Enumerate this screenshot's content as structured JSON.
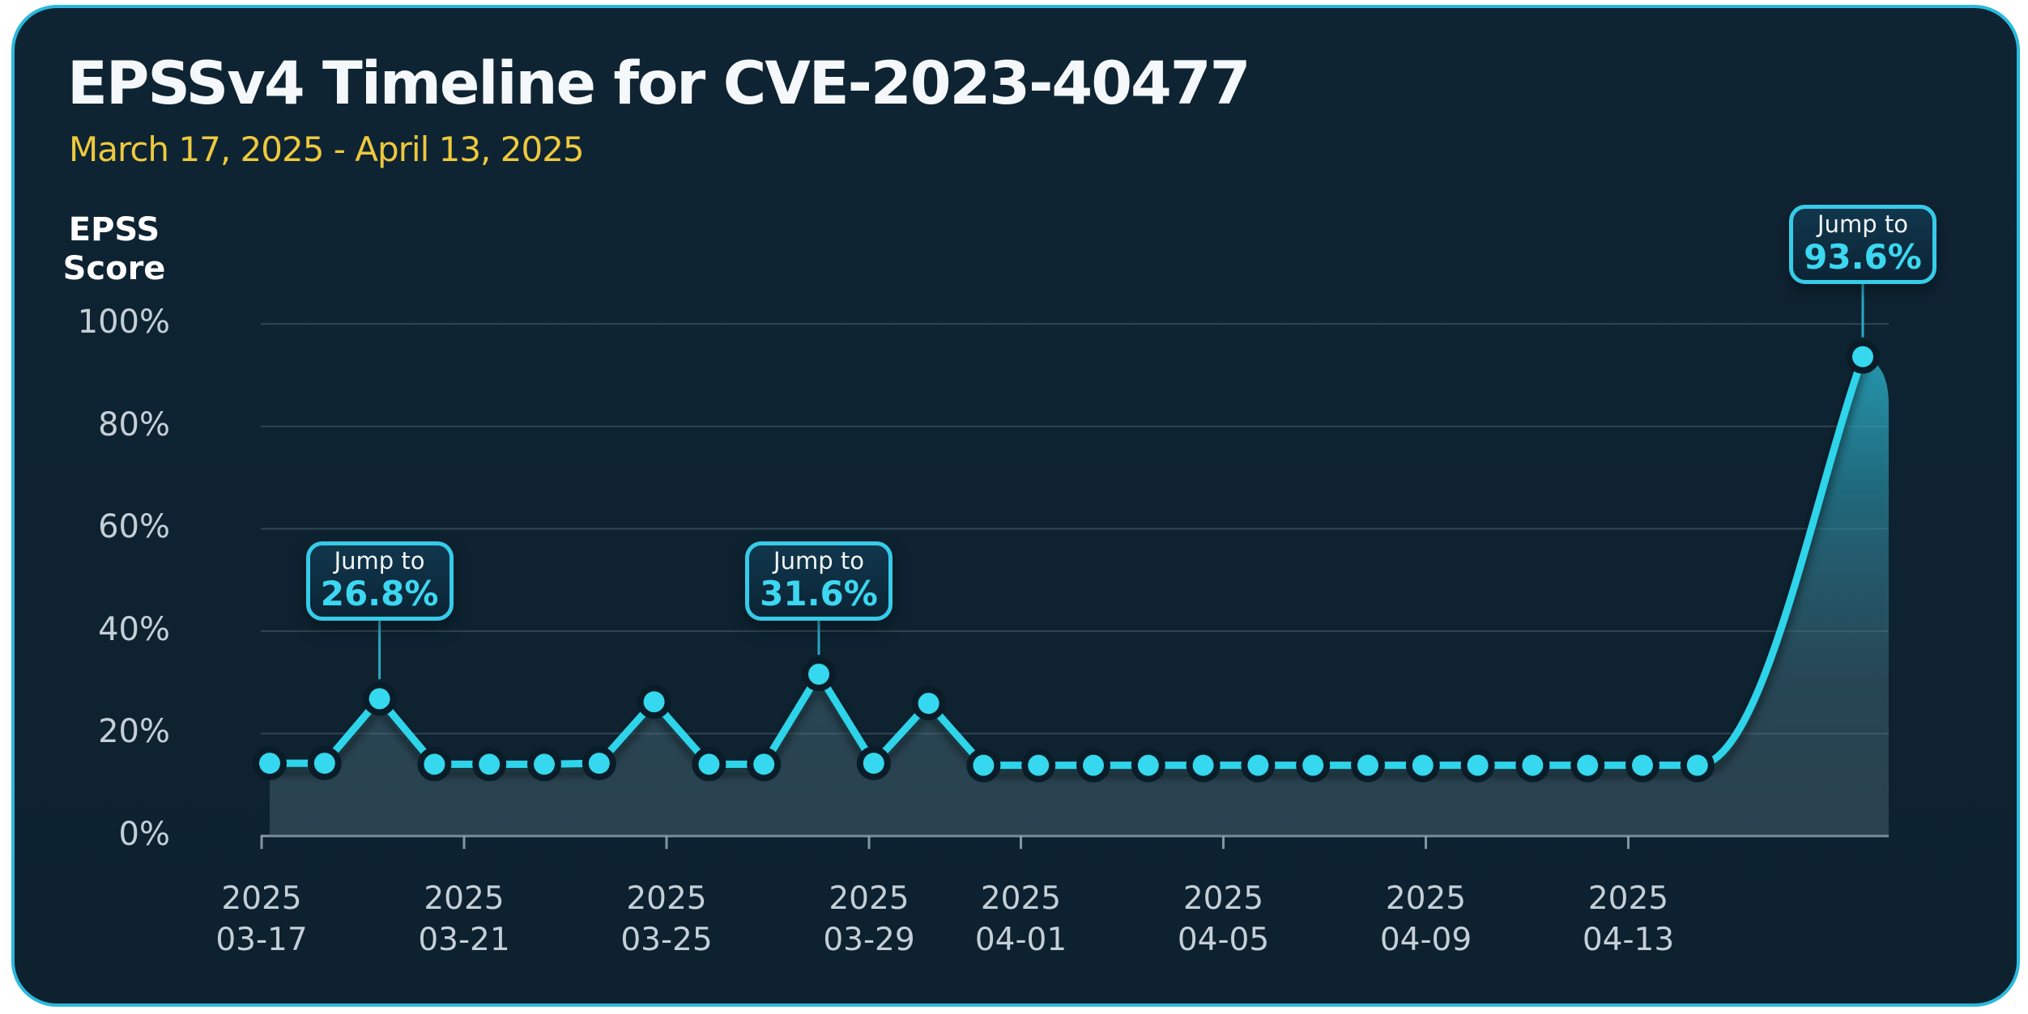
{
  "header": {
    "title": "EPSSv4 Timeline for CVE-2023-40477",
    "subtitle": "March 17, 2025 - April 13, 2025"
  },
  "y_axis": {
    "title_line1": "EPSS",
    "title_line2": "Score",
    "tick_labels": [
      "100%",
      "80%",
      "60%",
      "40%",
      "20%",
      "0%"
    ],
    "tick_values": [
      100,
      80,
      60,
      40,
      20,
      0
    ]
  },
  "x_axis": {
    "ticks": [
      {
        "year": "2025",
        "date": "03-17",
        "day": 0
      },
      {
        "year": "2025",
        "date": "03-21",
        "day": 4
      },
      {
        "year": "2025",
        "date": "03-25",
        "day": 8
      },
      {
        "year": "2025",
        "date": "03-29",
        "day": 12
      },
      {
        "year": "2025",
        "date": "04-01",
        "day": 15
      },
      {
        "year": "2025",
        "date": "04-05",
        "day": 19
      },
      {
        "year": "2025",
        "date": "04-09",
        "day": 23
      },
      {
        "year": "2025",
        "date": "04-13",
        "day": 27
      }
    ]
  },
  "annotations": [
    {
      "prefix": "Jump to",
      "value": "26.8%",
      "point_index": 2
    },
    {
      "prefix": "Jump to",
      "value": "31.6%",
      "point_index": 10
    },
    {
      "prefix": "Jump to",
      "value": "93.6%",
      "point_index": 27
    }
  ],
  "colors": {
    "page_background": "#ffffff",
    "card_background": "#0e2231",
    "card_border": "#2ab9dd",
    "title_text": "#f5f8fa",
    "subtitle_gold": "#eec93e",
    "tick_label": "#c5cfd7",
    "line_cyan": "#2fd4ea",
    "dot_fill": "#35d8ee",
    "dot_ring": "#0a1c28",
    "annotation_value": "#3cd7f0",
    "gridline": "#9db0bc",
    "axis_line": "#8fa2ae",
    "area_top": "#2ec4de",
    "area_bottom": "#56707b",
    "connector": "#2aa8c4"
  },
  "chart_data": {
    "type": "line",
    "title": "EPSSv4 Timeline for CVE-2023-40477",
    "date_range": "March 17, 2025 - April 13, 2025",
    "ylabel": "EPSS Score",
    "ylim": [
      0,
      100
    ],
    "y_ticks_percent": [
      0,
      20,
      40,
      60,
      80,
      100
    ],
    "grid": "horizontal",
    "legend_position": "none",
    "x": [
      "2025-03-17",
      "2025-03-18",
      "2025-03-19",
      "2025-03-20",
      "2025-03-21",
      "2025-03-22",
      "2025-03-23",
      "2025-03-24",
      "2025-03-25",
      "2025-03-26",
      "2025-03-27",
      "2025-03-28",
      "2025-03-29",
      "2025-03-30",
      "2025-03-31",
      "2025-04-01",
      "2025-04-02",
      "2025-04-03",
      "2025-04-04",
      "2025-04-05",
      "2025-04-06",
      "2025-04-07",
      "2025-04-08",
      "2025-04-09",
      "2025-04-10",
      "2025-04-11",
      "2025-04-12",
      "2025-04-13"
    ],
    "values": [
      14.2,
      14.2,
      26.8,
      14.0,
      14.0,
      14.0,
      14.2,
      26.2,
      14.0,
      14.0,
      31.6,
      14.2,
      25.9,
      13.8,
      13.8,
      13.8,
      13.8,
      13.8,
      13.8,
      13.8,
      13.8,
      13.8,
      13.8,
      13.8,
      13.8,
      13.8,
      13.8,
      93.6
    ],
    "annotations": [
      {
        "label": "Jump to 26.8%",
        "date": "2025-03-19",
        "value": 26.8
      },
      {
        "label": "Jump to 31.6%",
        "date": "2025-03-27",
        "value": 31.6
      },
      {
        "label": "Jump to 93.6%",
        "date": "2025-04-13",
        "value": 93.6
      }
    ]
  }
}
